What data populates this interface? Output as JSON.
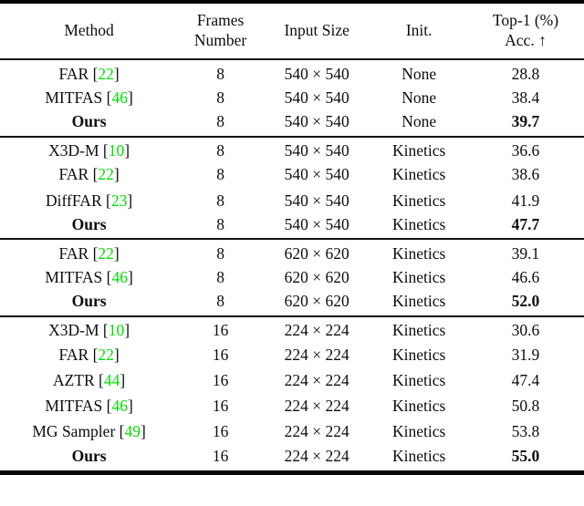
{
  "colors": {
    "citation_green": "#00e000",
    "text": "#0d0d0d",
    "rule_black": "#050505"
  },
  "table": {
    "columns": [
      {
        "id": "method",
        "lines": [
          "Method"
        ]
      },
      {
        "id": "frames",
        "lines": [
          "Frames",
          "Number"
        ]
      },
      {
        "id": "input_size",
        "lines": [
          "Input Size"
        ]
      },
      {
        "id": "init",
        "lines": [
          "Init."
        ]
      },
      {
        "id": "top1",
        "lines": [
          "Top-1 (%)",
          "Acc. ↑"
        ]
      }
    ],
    "groups": [
      {
        "rows": [
          {
            "method": "FAR",
            "cite": "22",
            "frames": "8",
            "input": "540 × 540",
            "init": "None",
            "top1": "28.8",
            "ours": false
          },
          {
            "method": "MITFAS",
            "cite": "46",
            "frames": "8",
            "input": "540 × 540",
            "init": "None",
            "top1": "38.4",
            "ours": false
          },
          {
            "method": "Ours",
            "cite": null,
            "frames": "8",
            "input": "540 × 540",
            "init": "None",
            "top1": "39.7",
            "ours": true
          }
        ]
      },
      {
        "rows": [
          {
            "method": "X3D-M",
            "cite": "10",
            "frames": "8",
            "input": "540 × 540",
            "init": "Kinetics",
            "top1": "36.6",
            "ours": false
          },
          {
            "method": "FAR",
            "cite": "22",
            "frames": "8",
            "input": "540 × 540",
            "init": "Kinetics",
            "top1": "38.6",
            "ours": false
          },
          {
            "method": "DiffFAR",
            "cite": "23",
            "frames": "8",
            "input": "540 × 540",
            "init": "Kinetics",
            "top1": "41.9",
            "ours": false
          },
          {
            "method": "Ours",
            "cite": null,
            "frames": "8",
            "input": "540 × 540",
            "init": "Kinetics",
            "top1": "47.7",
            "ours": true
          }
        ]
      },
      {
        "rows": [
          {
            "method": "FAR",
            "cite": "22",
            "frames": "8",
            "input": "620 × 620",
            "init": "Kinetics",
            "top1": "39.1",
            "ours": false
          },
          {
            "method": "MITFAS",
            "cite": "46",
            "frames": "8",
            "input": "620 × 620",
            "init": "Kinetics",
            "top1": "46.6",
            "ours": false
          },
          {
            "method": "Ours",
            "cite": null,
            "frames": "8",
            "input": "620 × 620",
            "init": "Kinetics",
            "top1": "52.0",
            "ours": true
          }
        ]
      },
      {
        "rows": [
          {
            "method": "X3D-M",
            "cite": "10",
            "frames": "16",
            "input": "224 × 224",
            "init": "Kinetics",
            "top1": "30.6",
            "ours": false
          },
          {
            "method": "FAR",
            "cite": "22",
            "frames": "16",
            "input": "224 × 224",
            "init": "Kinetics",
            "top1": "31.9",
            "ours": false
          },
          {
            "method": "AZTR",
            "cite": "44",
            "frames": "16",
            "input": "224 × 224",
            "init": "Kinetics",
            "top1": "47.4",
            "ours": false
          },
          {
            "method": "MITFAS",
            "cite": "46",
            "frames": "16",
            "input": "224 × 224",
            "init": "Kinetics",
            "top1": "50.8",
            "ours": false
          },
          {
            "method": "MG Sampler",
            "cite": "49",
            "frames": "16",
            "input": "224 × 224",
            "init": "Kinetics",
            "top1": "53.8",
            "ours": false
          },
          {
            "method": "Ours",
            "cite": null,
            "frames": "16",
            "input": "224 × 224",
            "init": "Kinetics",
            "top1": "55.0",
            "ours": true
          }
        ]
      }
    ]
  }
}
